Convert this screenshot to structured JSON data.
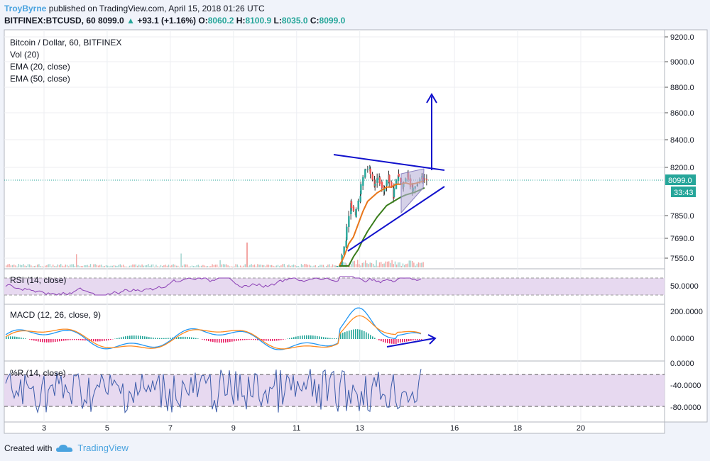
{
  "header": {
    "author": "TroyByrne",
    "published_text": "published on TradingView.com, April 15, 2018 01:26 UTC",
    "symbol": "BITFINEX:BTCUSD, 60",
    "price": "8099.0",
    "arrow": "▲",
    "change": "+93.1 (+1.16%)",
    "o_label": "O:",
    "o_value": "8060.2",
    "h_label": "H:",
    "h_value": "8100.9",
    "l_label": "L:",
    "l_value": "8035.0",
    "c_label": "C:",
    "c_value": "8099.0"
  },
  "legend": {
    "title": "Bitcoin / Dollar, 60, BITFINEX",
    "vol": "Vol (20)",
    "ema20": "EMA (20, close)",
    "ema50": "EMA (50, close)",
    "rsi": "RSI (14, close)",
    "macd": "MACD (12, 26, close, 9)",
    "wr": "%R (14, close)"
  },
  "price_axis": {
    "ticks": [
      "9200.0",
      "9000.0",
      "8800.0",
      "8600.0",
      "8400.0",
      "8200.0",
      "7850.0",
      "7690.0",
      "7550.0"
    ],
    "last_price": "8099.0",
    "countdown": "33:43"
  },
  "rsi_axis": [
    "50.0000"
  ],
  "macd_axis": [
    "200.0000",
    "0.0000"
  ],
  "wr_axis": [
    "0.0000",
    "-40.0000",
    "-80.0000"
  ],
  "x_axis": [
    "3",
    "5",
    "7",
    "9",
    "11",
    "13",
    "16",
    "18",
    "20"
  ],
  "footer": {
    "created_with": "Created with",
    "brand": "TradingView"
  },
  "colors": {
    "up": "#26a69a",
    "down": "#ef5350",
    "ema20": "#e8761a",
    "ema50": "#3a7d1c",
    "rsi": "#8b3fb5",
    "macd": "#2196f3",
    "signal": "#ff8a1f",
    "wr": "#3b5ba9",
    "annotation": "#1111cc",
    "band": "#e7d9f0"
  },
  "icons": {
    "footer_logo": "tradingview-cloud-icon"
  },
  "chart_data": {
    "type": "line",
    "title": "Bitcoin / Dollar, 60, BITFINEX",
    "x_ticks": [
      "3",
      "5",
      "7",
      "9",
      "11",
      "13",
      "16",
      "18",
      "20"
    ],
    "price_ylim": [
      7480,
      9240
    ],
    "price_series": {
      "name": "BTCUSD",
      "x_day": [
        12.35,
        12.5,
        12.65,
        12.8,
        12.95,
        13.1,
        13.25,
        13.4,
        13.55,
        13.7,
        13.85,
        14.0,
        14.15,
        14.3,
        14.45,
        14.6,
        14.75,
        14.9,
        15.05
      ],
      "close": [
        7520,
        7680,
        7950,
        7840,
        8000,
        8180,
        8190,
        8060,
        8120,
        8020,
        8140,
        7980,
        8150,
        8050,
        8160,
        8020,
        8080,
        8120,
        8099
      ]
    },
    "ema20": [
      7520,
      7560,
      7650,
      7700,
      7790,
      7880,
      7950,
      7980,
      8010,
      8030,
      8050,
      8050,
      8070,
      8070,
      8080,
      8070,
      8075,
      8085,
      8092
    ],
    "ema50": [
      7480,
      7490,
      7520,
      7560,
      7610,
      7680,
      7740,
      7790,
      7840,
      7880,
      7920,
      7940,
      7960,
      7980,
      7995,
      8005,
      8015,
      8030,
      8045
    ],
    "rsi_levels": [
      70,
      30
    ],
    "macd_ylim": [
      -80,
      240
    ],
    "wr_range": [
      -100,
      0
    ],
    "wr_levels": [
      -20,
      -80
    ]
  }
}
